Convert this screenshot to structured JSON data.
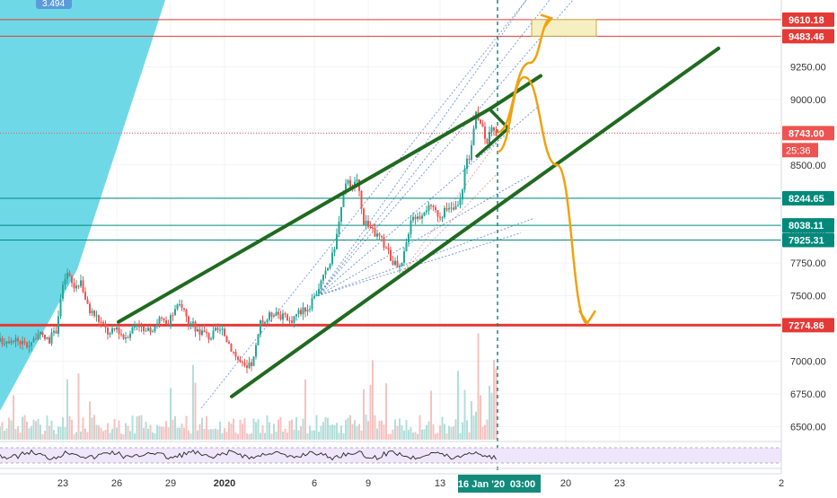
{
  "chart_data": {
    "type": "candlestick",
    "title": "",
    "xlabel": "",
    "ylabel": "",
    "ylim": [
      6400,
      9760
    ],
    "y_ticks": [
      6500,
      6750,
      7000,
      7250,
      7500,
      7750,
      8000,
      8250,
      8500,
      8750,
      9000,
      9250
    ],
    "y_tick_labels": [
      "6500.00",
      "6750.00",
      "7000.00",
      "7250.00",
      "7500.00",
      "7750.00",
      "8000.00",
      "8250.00",
      "8500.00",
      "8750.00",
      "9000.00",
      "9250.00"
    ],
    "x_ticks": [
      {
        "label": "23",
        "day": -9
      },
      {
        "label": "26",
        "day": -6
      },
      {
        "label": "29",
        "day": -3
      },
      {
        "label": "2020",
        "day": 0
      },
      {
        "label": "6",
        "day": 5
      },
      {
        "label": "9",
        "day": 8
      },
      {
        "label": "13",
        "day": 12
      },
      {
        "label": "20",
        "day": 19
      },
      {
        "label": "23",
        "day": 22
      },
      {
        "label": "2",
        "day": 31
      }
    ],
    "x_range_days": [
      -12.5,
      31
    ],
    "current_date_label": "16 Jan '20",
    "current_day": 15.2,
    "time_label": "03:00",
    "countdown_label": "25:36",
    "last_price": 8743.0,
    "last_price_label": "8743.00",
    "horizontal_levels": [
      {
        "value": 9610.18,
        "label": "9610.18",
        "color": "#e53935",
        "bold": false
      },
      {
        "value": 9483.46,
        "label": "9483.46",
        "color": "#e53935",
        "bold": false
      },
      {
        "value": 8244.65,
        "label": "8244.65",
        "color": "#00897b",
        "bold": false
      },
      {
        "value": 8038.11,
        "label": "8038.11",
        "color": "#00897b",
        "bold": false
      },
      {
        "value": 7925.31,
        "label": "7925.31",
        "color": "#00897b",
        "bold": false
      },
      {
        "value": 7274.86,
        "label": "7274.86",
        "color": "#e53935",
        "bold": true
      }
    ],
    "corner_badge_label": "3.494",
    "price_path": [
      [
        -12.5,
        7150
      ],
      [
        -11.8,
        7180
      ],
      [
        -11.0,
        7120
      ],
      [
        -10.4,
        7200
      ],
      [
        -9.8,
        7160
      ],
      [
        -9.4,
        7220
      ],
      [
        -9.1,
        7500
      ],
      [
        -8.8,
        7680
      ],
      [
        -8.4,
        7560
      ],
      [
        -8.0,
        7620
      ],
      [
        -7.6,
        7400
      ],
      [
        -7.2,
        7350
      ],
      [
        -6.8,
        7280
      ],
      [
        -6.4,
        7200
      ],
      [
        -6.0,
        7260
      ],
      [
        -5.6,
        7180
      ],
      [
        -5.2,
        7240
      ],
      [
        -4.8,
        7300
      ],
      [
        -4.4,
        7200
      ],
      [
        -4.0,
        7260
      ],
      [
        -3.6,
        7330
      ],
      [
        -3.2,
        7260
      ],
      [
        -2.8,
        7380
      ],
      [
        -2.4,
        7440
      ],
      [
        -2.0,
        7300
      ],
      [
        -1.6,
        7250
      ],
      [
        -1.2,
        7220
      ],
      [
        -0.8,
        7180
      ],
      [
        -0.4,
        7240
      ],
      [
        0.0,
        7200
      ],
      [
        0.4,
        7100
      ],
      [
        0.8,
        7000
      ],
      [
        1.2,
        6930
      ],
      [
        1.6,
        7000
      ],
      [
        2.0,
        7280
      ],
      [
        2.4,
        7330
      ],
      [
        2.8,
        7390
      ],
      [
        3.2,
        7340
      ],
      [
        3.6,
        7300
      ],
      [
        4.0,
        7360
      ],
      [
        4.4,
        7400
      ],
      [
        4.8,
        7420
      ],
      [
        5.2,
        7560
      ],
      [
        5.6,
        7660
      ],
      [
        6.0,
        7800
      ],
      [
        6.3,
        8000
      ],
      [
        6.6,
        8250
      ],
      [
        6.9,
        8420
      ],
      [
        7.1,
        8300
      ],
      [
        7.4,
        8400
      ],
      [
        7.7,
        8080
      ],
      [
        8.0,
        8050
      ],
      [
        8.3,
        7980
      ],
      [
        8.6,
        7950
      ],
      [
        9.0,
        7870
      ],
      [
        9.4,
        7750
      ],
      [
        9.8,
        7690
      ],
      [
        10.1,
        7880
      ],
      [
        10.4,
        8120
      ],
      [
        10.8,
        8100
      ],
      [
        11.2,
        8180
      ],
      [
        11.6,
        8150
      ],
      [
        12.0,
        8120
      ],
      [
        12.4,
        8150
      ],
      [
        12.8,
        8160
      ],
      [
        13.1,
        8200
      ],
      [
        13.4,
        8480
      ],
      [
        13.7,
        8600
      ],
      [
        14.0,
        8880
      ],
      [
        14.3,
        8820
      ],
      [
        14.6,
        8690
      ],
      [
        14.9,
        8760
      ],
      [
        15.2,
        8743
      ]
    ],
    "bullish_scenario": [
      [
        15.2,
        8750
      ],
      [
        17.0,
        9280
      ],
      [
        18.2,
        9620
      ]
    ],
    "bearish_scenario": [
      [
        15.2,
        8600
      ],
      [
        16.7,
        9170
      ],
      [
        18.5,
        8500
      ],
      [
        20.2,
        7290
      ]
    ],
    "colors": {
      "candle_up": "#26a69a",
      "candle_down": "#ef5350",
      "channel": "#1f6a1f",
      "scenario": "#f0a112",
      "wedge_fill": "#66d6e6",
      "fib_fan": "#3f6fc9",
      "target_box_fill": "#f6efc2",
      "target_box_border": "#caa94a",
      "current_date_badge": "#138b7b",
      "oscillator_band": "#efe6fb",
      "badge_blue": "#5c9bd9"
    },
    "oscillator": {
      "band_upper": 70,
      "band_lower": 30
    }
  }
}
